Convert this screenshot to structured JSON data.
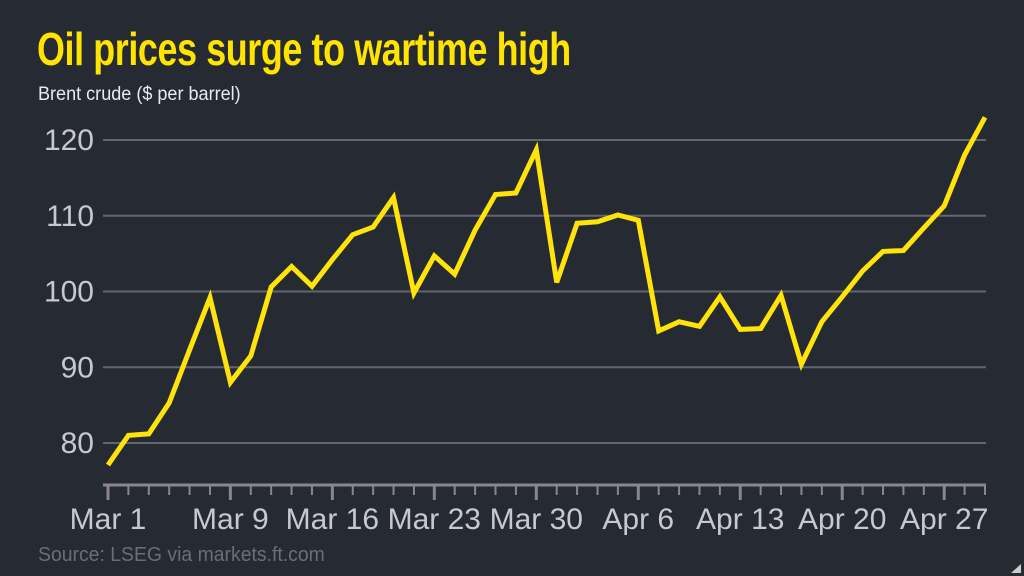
{
  "page": {
    "title": "Oil prices surge to wartime high",
    "subtitle": "Brent crude ($ per barrel)",
    "source": "Source: LSEG via markets.ft.com"
  },
  "colors": {
    "background": "#262A33",
    "title": "#FFE400",
    "line": "#FFE30A",
    "grid": "#63666E",
    "axis": "#8A8591",
    "tick_label": "#C7C9CE",
    "subtitle": "#E9EAEC",
    "source": "#6A6E75",
    "resize_handle": "#CFCDC9"
  },
  "chart_data": {
    "type": "line",
    "title": "Oil prices surge to wartime high",
    "subtitle": "Brent crude ($ per barrel)",
    "source": "Source: LSEG via markets.ft.com",
    "series": [
      {
        "name": "Brent crude ($ per barrel)",
        "values": [
          77.1,
          81.0,
          81.2,
          85.3,
          92.3,
          99.2,
          88.0,
          91.5,
          100.6,
          103.3,
          100.7,
          104.2,
          107.5,
          108.5,
          112.4,
          99.8,
          104.7,
          102.3,
          108.1,
          112.8,
          113.0,
          118.7,
          101.2,
          109.0,
          109.2,
          110.1,
          109.4,
          94.8,
          96.0,
          95.4,
          99.3,
          95.0,
          95.1,
          99.5,
          90.4,
          96.0,
          99.3,
          102.7,
          105.3,
          105.4,
          108.4,
          111.3,
          118.0,
          123.0
        ]
      }
    ],
    "x_tick_labels": [
      "Mar 1",
      "Mar 9",
      "Mar 16",
      "Mar 23",
      "Mar 30",
      "Apr 6",
      "Apr 13",
      "Apr 20",
      "Apr 27"
    ],
    "x_tick_indices": [
      0,
      6,
      11,
      16,
      21,
      26,
      31,
      36,
      41
    ],
    "y_ticks": [
      80,
      90,
      100,
      110,
      120
    ],
    "ylim": [
      80,
      120
    ],
    "grid": "horizontal-only",
    "legend": "none"
  }
}
